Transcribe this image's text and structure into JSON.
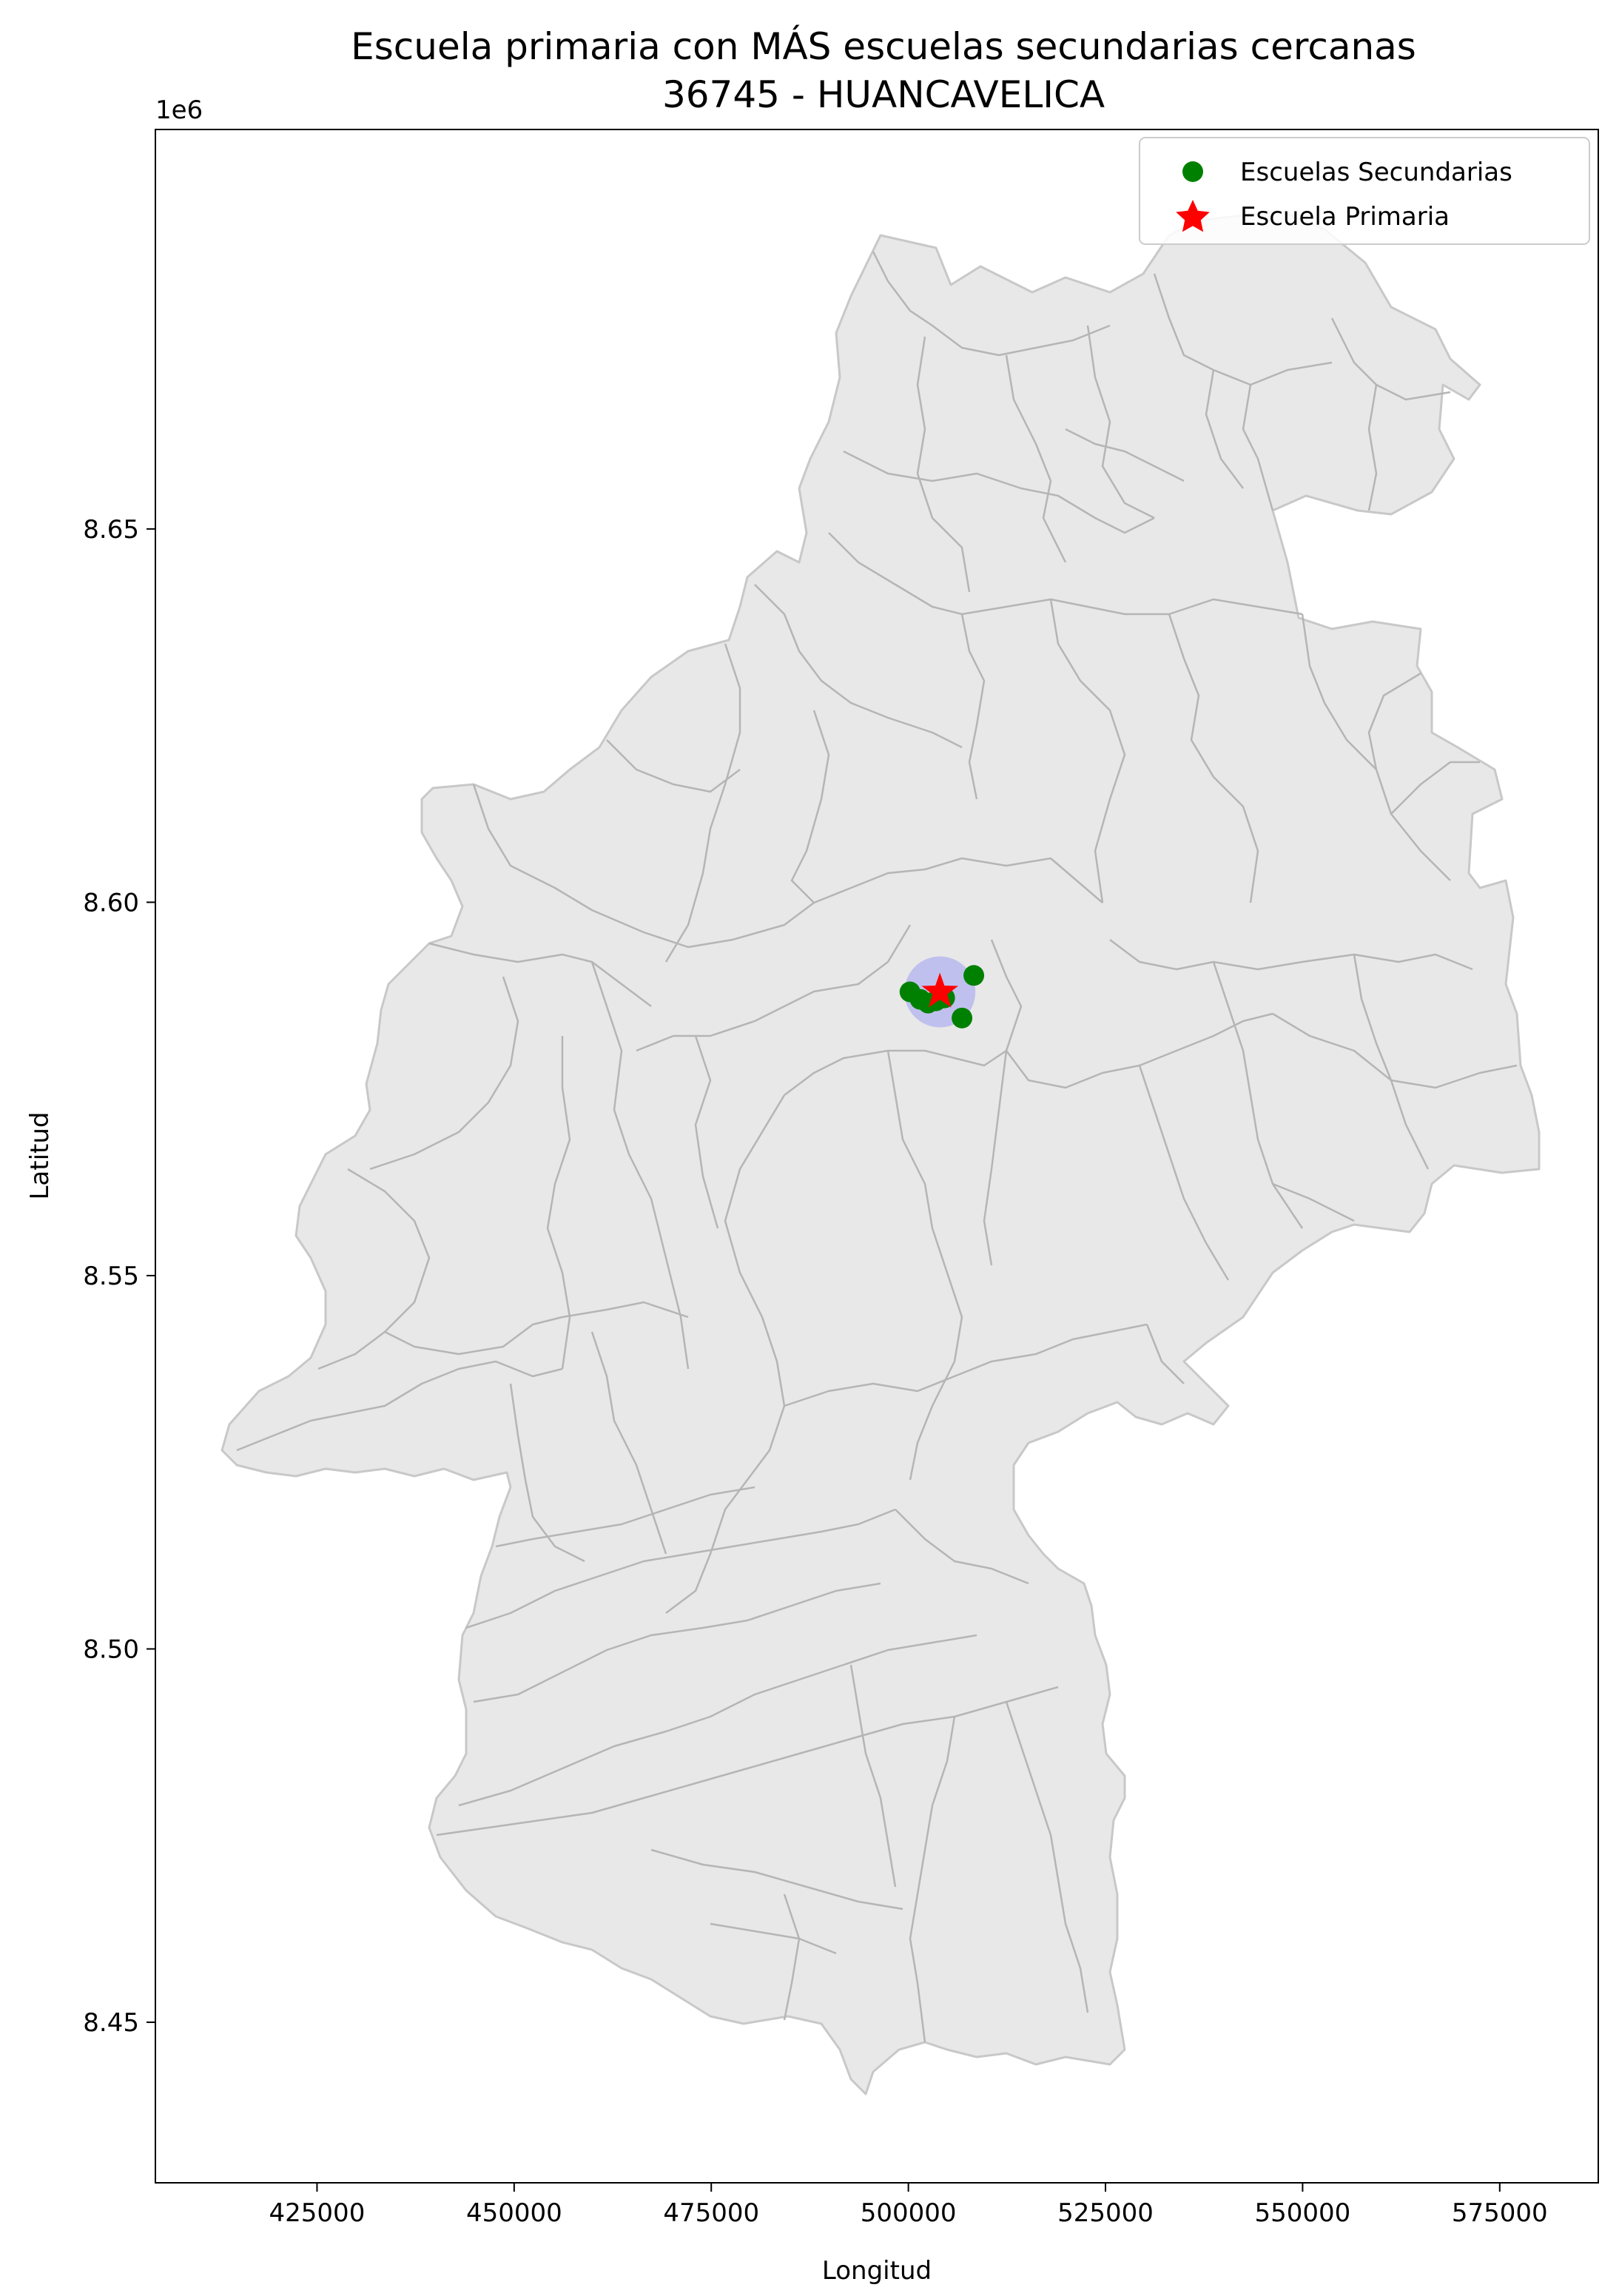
{
  "chart_data": {
    "type": "map",
    "title_line1": "Escuela primaria con MÁS escuelas secundarias cercanas",
    "title_line2": "36745 - HUANCAVELICA",
    "xlabel": "Longitud",
    "ylabel": "Latitud",
    "y_offset_label": "1e6",
    "xlim": [
      404500,
      587500
    ],
    "ylim": [
      8428500,
      8703500
    ],
    "x_ticks": [
      425000,
      450000,
      475000,
      500000,
      525000,
      550000,
      575000
    ],
    "x_tick_labels": [
      "425000",
      "450000",
      "475000",
      "500000",
      "525000",
      "550000",
      "575000"
    ],
    "y_ticks": [
      8450000,
      8500000,
      8550000,
      8600000,
      8650000
    ],
    "y_tick_labels": [
      "8.45",
      "8.50",
      "8.55",
      "8.60",
      "8.65"
    ],
    "legend": [
      {
        "label": "Escuelas Secundarias",
        "marker": "circle",
        "color": "#008000"
      },
      {
        "label": "Escuela Primaria",
        "marker": "star",
        "color": "#ff0000"
      }
    ],
    "buffer": {
      "center": [
        504000,
        8588000
      ],
      "radius": 4500,
      "color": "#b3b3f0"
    },
    "primary_school": {
      "x": 504000,
      "y": 8588000
    },
    "secondary_schools": [
      {
        "x": 500200,
        "y": 8588000
      },
      {
        "x": 501500,
        "y": 8587000
      },
      {
        "x": 502500,
        "y": 8586500
      },
      {
        "x": 503500,
        "y": 8586800
      },
      {
        "x": 504600,
        "y": 8587200
      },
      {
        "x": 506800,
        "y": 8584500
      },
      {
        "x": 508300,
        "y": 8590200
      }
    ],
    "colors": {
      "region_fill": "#e8e8e8",
      "region_edge": "#b5b5b5"
    }
  }
}
